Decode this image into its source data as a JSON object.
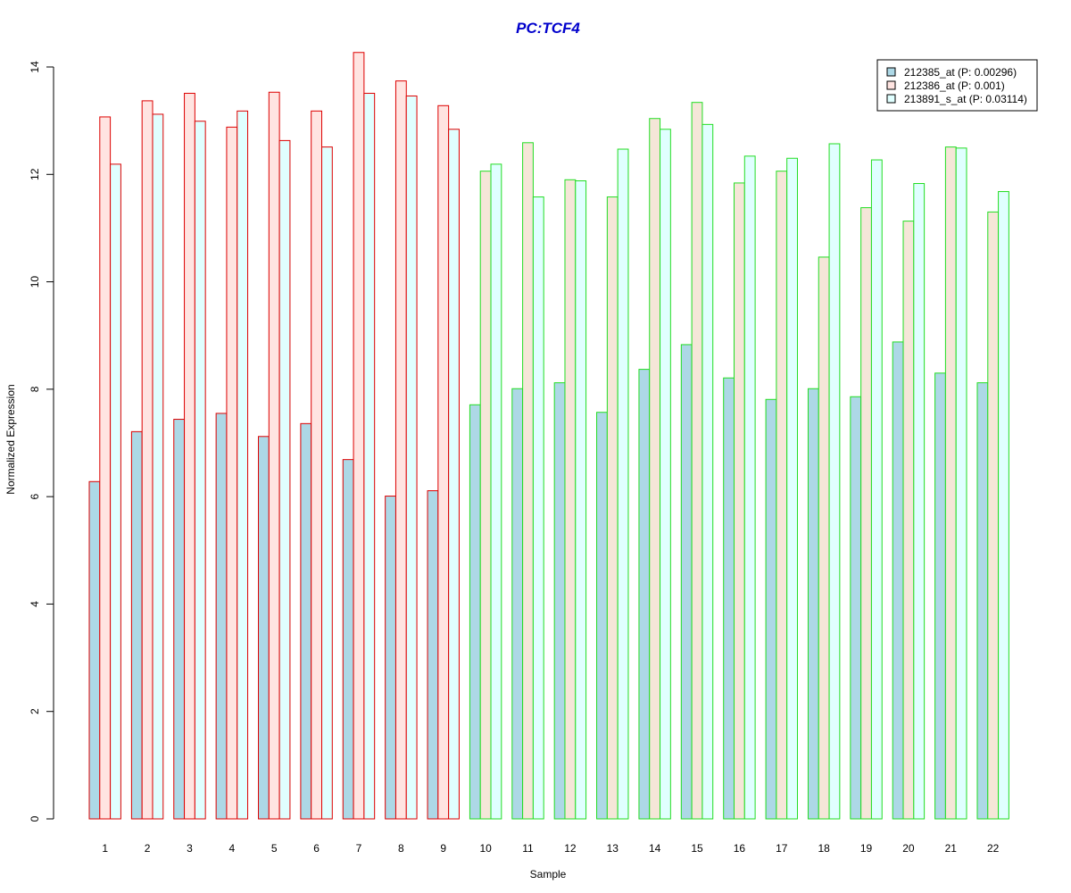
{
  "chart_data": {
    "type": "bar",
    "title": "PC:TCF4",
    "xlabel": "Sample",
    "ylabel": "Normalized Expression",
    "ylim": [
      0,
      14
    ],
    "yticks": [
      0,
      2,
      4,
      6,
      8,
      10,
      12,
      14
    ],
    "grid": false,
    "legend_position": "top-right",
    "categories": [
      "1",
      "2",
      "3",
      "4",
      "5",
      "6",
      "7",
      "8",
      "9",
      "10",
      "11",
      "12",
      "13",
      "14",
      "15",
      "16",
      "17",
      "18",
      "19",
      "20",
      "21",
      "22"
    ],
    "groups": [
      {
        "border_color": "#dd0000",
        "samples": [
          "1",
          "2",
          "3",
          "4",
          "5",
          "6",
          "7",
          "8",
          "9"
        ]
      },
      {
        "border_color": "#22dd22",
        "samples": [
          "10",
          "11",
          "12",
          "13",
          "14",
          "15",
          "16",
          "17",
          "18",
          "19",
          "20",
          "21",
          "22"
        ]
      }
    ],
    "series": [
      {
        "name": "212385_at (P: 0.00296)",
        "fill_color": "#add8e6",
        "values": [
          6.28,
          7.21,
          7.44,
          7.55,
          7.12,
          7.36,
          6.69,
          6.01,
          6.11,
          7.71,
          8.01,
          8.12,
          7.57,
          8.37,
          8.83,
          8.21,
          7.81,
          8.01,
          7.86,
          8.88,
          8.3,
          8.12
        ]
      },
      {
        "name": "212386_at (P: 0.001)",
        "fill_color_group1": "#ffe4e1",
        "fill_color_group2": "#f5e6d8",
        "values": [
          13.07,
          13.37,
          13.51,
          12.88,
          13.53,
          13.18,
          14.27,
          13.74,
          13.28,
          12.06,
          12.59,
          11.9,
          11.58,
          13.04,
          13.34,
          11.84,
          12.06,
          10.46,
          11.38,
          11.13,
          12.51,
          11.3
        ]
      },
      {
        "name": "213891_s_at (P: 0.03114)",
        "fill_color": "#e0ffff",
        "values": [
          12.19,
          13.12,
          12.99,
          13.18,
          12.63,
          12.51,
          13.51,
          13.46,
          12.84,
          12.19,
          11.58,
          11.88,
          12.47,
          12.84,
          12.93,
          12.34,
          12.3,
          12.57,
          12.27,
          11.83,
          12.49,
          11.68
        ]
      }
    ]
  },
  "colors": {
    "title": "#0000cc",
    "axis": "#000000"
  }
}
